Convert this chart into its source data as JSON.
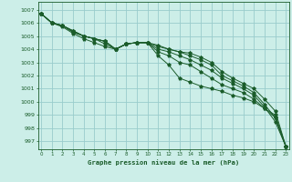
{
  "xlabel": "Graphe pression niveau de la mer (hPa)",
  "bg_color": "#cceee8",
  "grid_color": "#99cccc",
  "line_color": "#1a5c2a",
  "ylim": [
    996.4,
    1007.6
  ],
  "xlim": [
    -0.3,
    23.3
  ],
  "yticks": [
    997,
    998,
    999,
    1000,
    1001,
    1002,
    1003,
    1004,
    1005,
    1006,
    1007
  ],
  "xticks": [
    0,
    1,
    2,
    3,
    4,
    5,
    6,
    7,
    8,
    9,
    10,
    11,
    12,
    13,
    14,
    15,
    16,
    17,
    18,
    19,
    20,
    21,
    22,
    23
  ],
  "series": [
    [
      1006.7,
      1006.0,
      1005.8,
      1005.4,
      1005.0,
      1004.8,
      1004.6,
      1004.0,
      1004.4,
      1004.5,
      1004.5,
      1003.5,
      1002.8,
      1001.8,
      1001.5,
      1001.2,
      1001.0,
      1000.8,
      1000.5,
      1000.3,
      1000.0,
      999.5,
      999.0,
      996.6
    ],
    [
      1006.7,
      1006.0,
      1005.8,
      1005.4,
      1005.0,
      1004.8,
      1004.6,
      1004.0,
      1004.4,
      1004.5,
      1004.5,
      1003.8,
      1003.5,
      1003.0,
      1002.8,
      1002.3,
      1001.8,
      1001.3,
      1001.0,
      1000.7,
      1000.2,
      999.5,
      998.8,
      996.6
    ],
    [
      1006.7,
      1006.0,
      1005.8,
      1005.3,
      1005.0,
      1004.8,
      1004.6,
      1004.0,
      1004.4,
      1004.5,
      1004.5,
      1004.0,
      1003.8,
      1003.5,
      1003.2,
      1002.8,
      1002.4,
      1001.8,
      1001.4,
      1001.0,
      1000.5,
      999.6,
      998.5,
      996.6
    ],
    [
      1006.7,
      1006.0,
      1005.8,
      1005.3,
      1005.0,
      1004.8,
      1004.4,
      1004.0,
      1004.4,
      1004.5,
      1004.5,
      1004.2,
      1004.0,
      1003.8,
      1003.5,
      1003.2,
      1002.8,
      1002.0,
      1001.6,
      1001.2,
      1000.7,
      999.8,
      998.8,
      996.6
    ],
    [
      1006.7,
      1006.0,
      1005.7,
      1005.2,
      1004.8,
      1004.5,
      1004.2,
      1004.0,
      1004.4,
      1004.5,
      1004.5,
      1004.3,
      1004.0,
      1003.8,
      1003.7,
      1003.4,
      1003.0,
      1002.3,
      1001.8,
      1001.4,
      1001.0,
      1000.2,
      999.3,
      996.6
    ]
  ]
}
